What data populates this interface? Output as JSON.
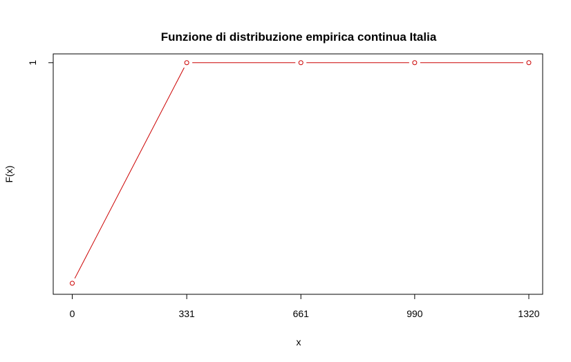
{
  "chart_data": {
    "type": "line",
    "title": "Funzione di distribuzione empirica continua Italia",
    "xlabel": "x",
    "ylabel": "F(x)",
    "x_ticks": [
      0,
      331,
      661,
      990,
      1320
    ],
    "x_tick_labels": [
      "0",
      "331",
      "661",
      "990",
      "1320"
    ],
    "y_ticks": [
      1
    ],
    "y_tick_labels": [
      "1"
    ],
    "xlim": [
      -55,
      1360
    ],
    "ylim": [
      -0.05,
      1.04
    ],
    "grid": false,
    "series": [
      {
        "x": [
          0,
          331,
          661,
          990,
          1320
        ],
        "y": [
          0,
          1,
          1,
          1,
          1
        ],
        "color": "#cc0000"
      }
    ]
  }
}
